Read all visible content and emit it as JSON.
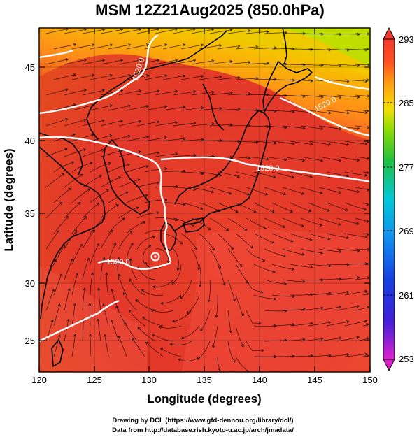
{
  "title": "MSM 12Z21Aug2025 (850.0hPa)",
  "xlabel": "Longitude (degrees)",
  "ylabel": "Latitude  (degrees)",
  "x_ticks": [
    "120",
    "125",
    "130",
    "135",
    "140",
    "145",
    "150"
  ],
  "y_ticks": [
    "25",
    "30",
    "35",
    "40",
    "45"
  ],
  "colorbar_ticks": [
    "293",
    "285",
    "277",
    "269",
    "261",
    "253"
  ],
  "contour_labels": [
    "1520.0",
    "1520.0",
    "1520.0",
    "1520.0"
  ],
  "credit_line1": "Drawing by DCL (https://www.gfd-dennou.org/library/dcl/)",
  "credit_line2": "Data from http://database.rish.kyoto-u.ac.jp/arch/jmadata/",
  "colors": {
    "warm": "#e23a23",
    "hot": "#f24a3c",
    "orange": "#ff8a1a",
    "yellow": "#f2e000",
    "green": "#33cc33",
    "cyan": "#00c8e6",
    "blue": "#1640e0",
    "magenta": "#e020d0"
  }
}
